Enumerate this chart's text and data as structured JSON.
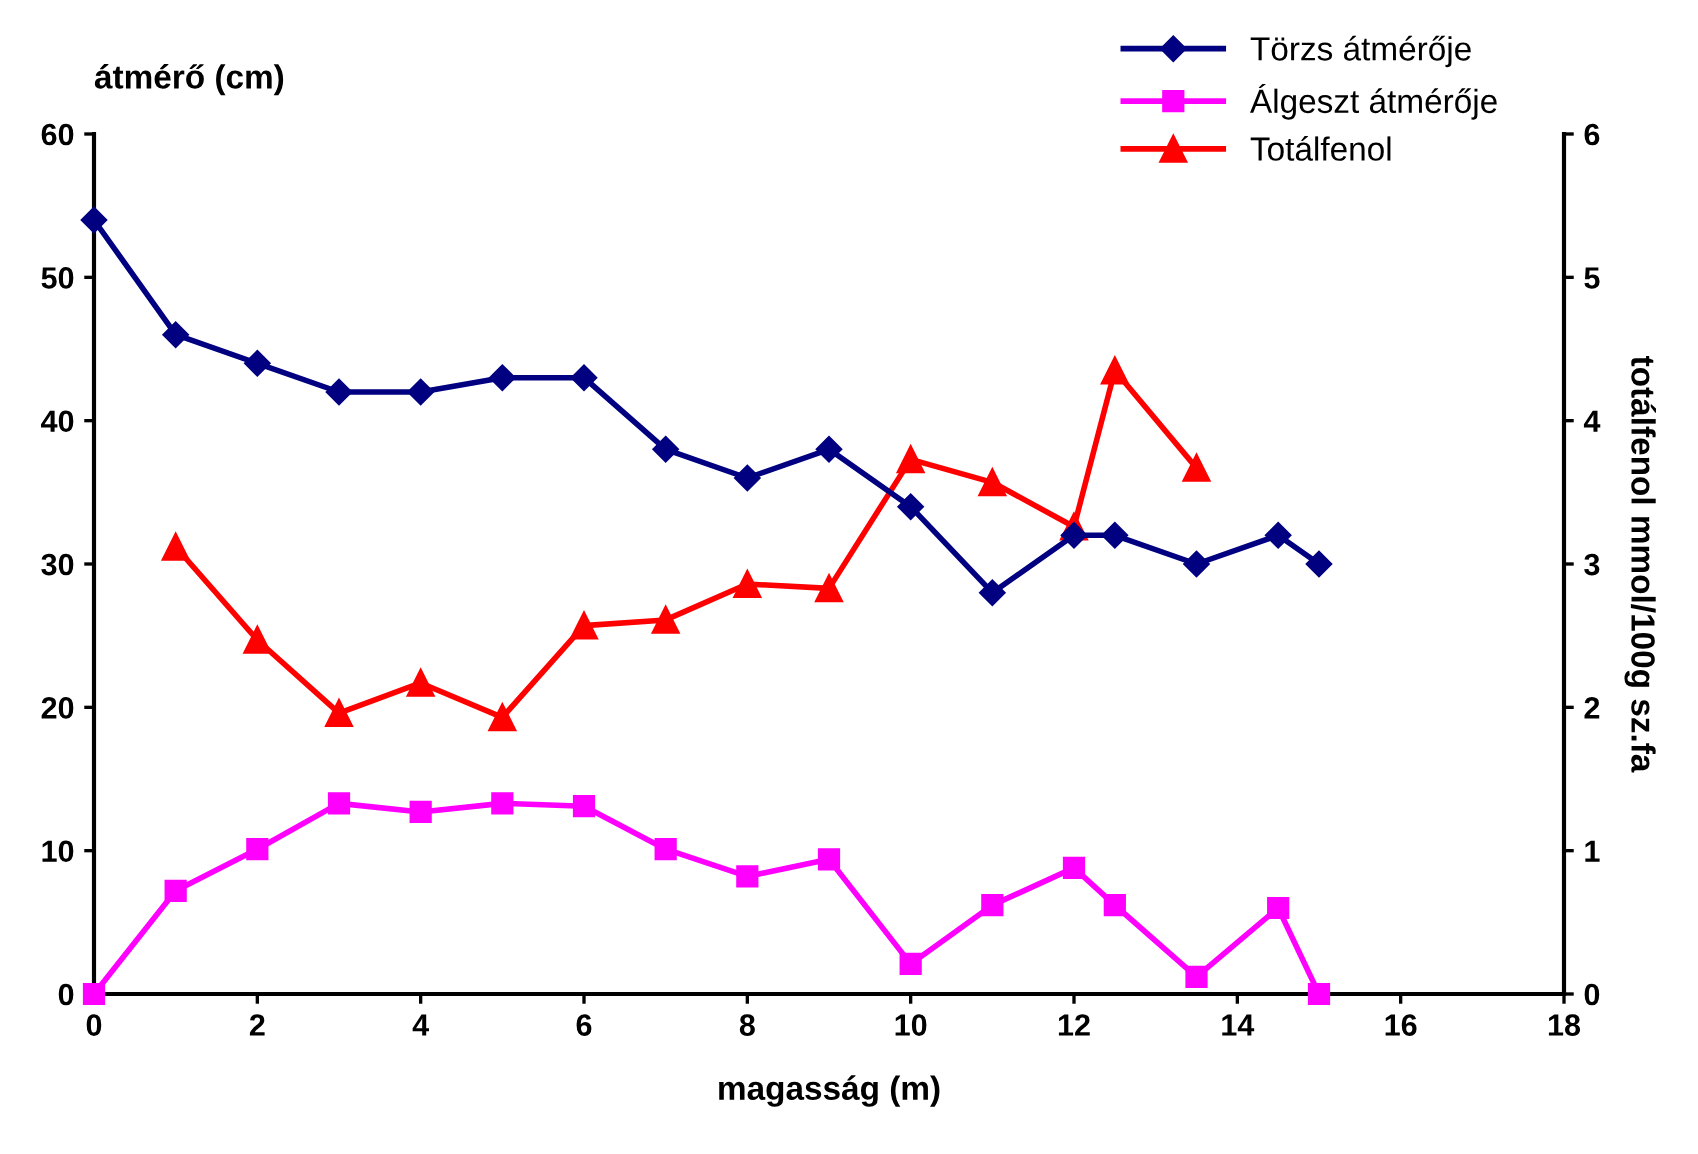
{
  "chart_data": {
    "type": "line",
    "xlabel": "magasság (m)",
    "ylabel": "átmérő (cm)",
    "y2label": "totálfenol mmol/100g sz.fa",
    "xlim": [
      0,
      18
    ],
    "xticks": [
      0,
      2,
      4,
      6,
      8,
      10,
      12,
      14,
      16,
      18
    ],
    "ylim": [
      0,
      60
    ],
    "yticks": [
      0,
      10,
      20,
      30,
      40,
      50,
      60
    ],
    "y2lim": [
      0,
      6
    ],
    "y2ticks": [
      0,
      1,
      2,
      3,
      4,
      5,
      6
    ],
    "grid": false,
    "legend": "top right",
    "line_style": "solid",
    "series": [
      {
        "name": "Törzs átmérője",
        "color": "#000080",
        "marker": "diamond",
        "x": [
          0,
          1,
          2,
          3,
          4,
          5,
          6,
          7,
          8,
          9,
          10,
          11,
          12,
          12.5,
          13.5,
          14.5,
          15
        ],
        "values": [
          54,
          46,
          44,
          42,
          42,
          43,
          43,
          38,
          36,
          38,
          34,
          28,
          32,
          32,
          30,
          32,
          30
        ]
      },
      {
        "name": "Álgeszt átmérője",
        "color": "#ff00ff",
        "marker": "square",
        "x": [
          0,
          1,
          2,
          3,
          4,
          5,
          6,
          7,
          8,
          9,
          10,
          11,
          12,
          12.5,
          13.5,
          14.5,
          15
        ],
        "values": [
          0,
          7.2,
          10.1,
          13.3,
          12.7,
          13.3,
          13.1,
          10.1,
          8.2,
          9.4,
          2.1,
          6.2,
          8.8,
          6.2,
          1.2,
          6,
          0
        ]
      },
      {
        "name": "Totálfenol",
        "color": "#ff0000",
        "marker": "triangle",
        "axis": "y2",
        "x": [
          1,
          2,
          3,
          4,
          5,
          6,
          7,
          8,
          9,
          10,
          11,
          12,
          12.5,
          13.5
        ],
        "values": [
          3.12,
          2.47,
          1.96,
          2.17,
          1.93,
          2.57,
          2.61,
          2.86,
          2.83,
          3.73,
          3.57,
          3.26,
          4.35,
          3.67
        ]
      }
    ]
  }
}
